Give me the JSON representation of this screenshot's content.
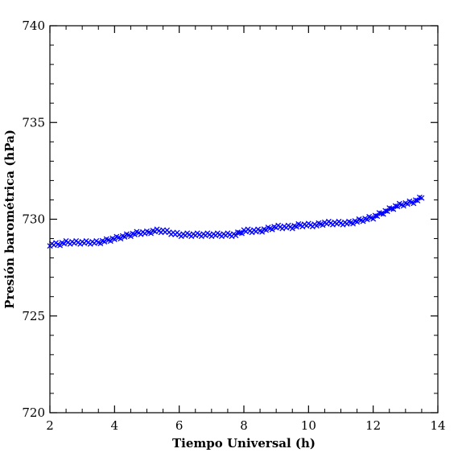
{
  "chart_data": {
    "type": "scatter",
    "title": "",
    "xlabel": "Tiempo Universal (h)",
    "ylabel": "Presión barométrica (hPa)",
    "xlim": [
      2,
      14
    ],
    "ylim": [
      720,
      740
    ],
    "xticks": [
      2,
      4,
      6,
      8,
      10,
      12,
      14
    ],
    "xtick_labels": [
      "2",
      "4",
      "6",
      "8",
      "10",
      "12",
      "14"
    ],
    "yticks": [
      720,
      725,
      730,
      735,
      740
    ],
    "ytick_labels": [
      "720",
      "725",
      "730",
      "735",
      "740"
    ],
    "x_minor_step": 0.5,
    "y_minor_step": 1,
    "grid": false,
    "legend": "none",
    "marker": "x",
    "colors": {
      "series": "#0000ff",
      "axes": "#000000"
    },
    "series": [
      {
        "x": [
          2.0,
          2.25,
          2.5,
          2.75,
          3.0,
          3.25,
          3.5,
          3.75,
          4.0,
          4.25,
          4.5,
          4.75,
          5.0,
          5.25,
          5.5,
          5.75,
          6.0,
          6.25,
          6.5,
          6.75,
          7.0,
          7.25,
          7.5,
          7.75,
          8.0,
          8.25,
          8.5,
          8.75,
          9.0,
          9.25,
          9.5,
          9.75,
          10.0,
          10.25,
          10.5,
          10.75,
          11.0,
          11.25,
          11.5,
          11.75,
          12.0,
          12.25,
          12.5,
          12.75,
          13.0,
          13.25,
          13.5
        ],
        "y": [
          728.7,
          728.7,
          728.8,
          728.8,
          728.8,
          728.8,
          728.8,
          728.9,
          729.0,
          729.1,
          729.2,
          729.3,
          729.3,
          729.4,
          729.4,
          729.3,
          729.2,
          729.2,
          729.2,
          729.2,
          729.2,
          729.2,
          729.2,
          729.2,
          729.4,
          729.4,
          729.4,
          729.5,
          729.6,
          729.6,
          729.6,
          729.7,
          729.7,
          729.7,
          729.8,
          729.8,
          729.8,
          729.8,
          729.9,
          730.0,
          730.1,
          730.3,
          730.5,
          730.7,
          730.8,
          730.9,
          731.1
        ]
      }
    ]
  }
}
